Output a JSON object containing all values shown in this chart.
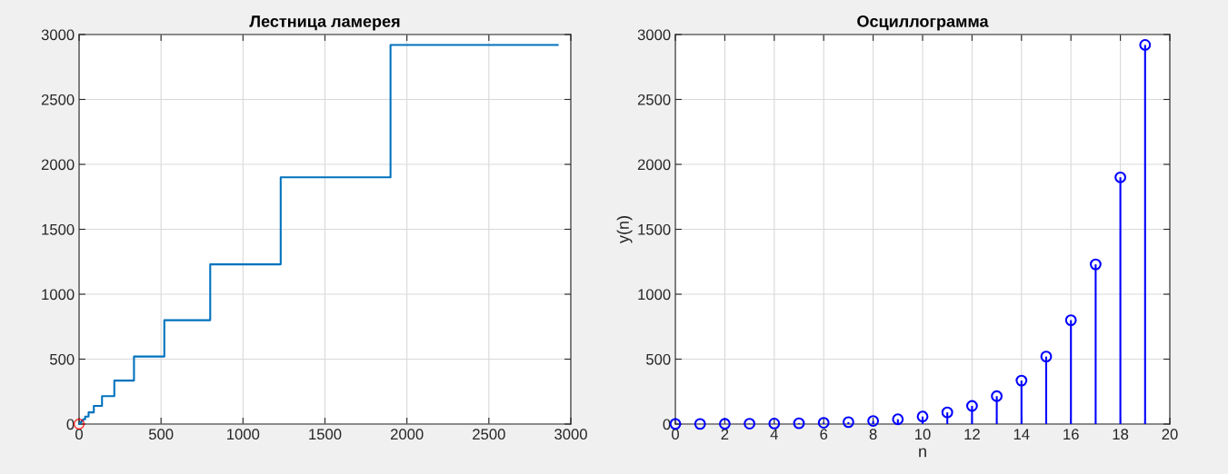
{
  "chart_data": [
    {
      "type": "line",
      "title": "Лестница ламерея",
      "xlim": [
        0,
        3000
      ],
      "xticks": [
        0,
        500,
        1000,
        1500,
        2000,
        2500,
        3000
      ],
      "ylim": [
        0,
        3000
      ],
      "yticks": [
        0,
        500,
        1000,
        1500,
        2000,
        2500,
        3000
      ],
      "grid": true,
      "series": [
        {
          "type": "line",
          "color": "#0072bd",
          "x": [
            1,
            1,
            1,
            2,
            2,
            3,
            3,
            4,
            4,
            6,
            6,
            10,
            10,
            15,
            15,
            24,
            24,
            37,
            37,
            58,
            58,
            90,
            90,
            140,
            140,
            215,
            215,
            335,
            335,
            520,
            520,
            800,
            800,
            1230,
            1230,
            1900,
            1900,
            2920
          ],
          "values": [
            1,
            1,
            2,
            2,
            3,
            3,
            4,
            4,
            6,
            6,
            10,
            10,
            15,
            15,
            24,
            24,
            37,
            37,
            58,
            58,
            90,
            90,
            140,
            140,
            215,
            215,
            335,
            335,
            520,
            520,
            800,
            800,
            1230,
            1230,
            1900,
            1900,
            2920,
            2920
          ]
        },
        {
          "type": "scatter",
          "color": "#ff0000",
          "marker": "circle",
          "x": [
            0
          ],
          "values": [
            0
          ]
        }
      ]
    },
    {
      "type": "lollipop",
      "title": "Осциллограмма",
      "xlabel": "n",
      "ylabel": "y(n)",
      "xlim": [
        0,
        20
      ],
      "xticks": [
        0,
        2,
        4,
        6,
        8,
        10,
        12,
        14,
        16,
        18,
        20
      ],
      "ylim": [
        0,
        3000
      ],
      "yticks": [
        0,
        500,
        1000,
        1500,
        2000,
        2500,
        3000
      ],
      "grid": true,
      "marker": "circle",
      "series": [
        {
          "color": "#0000ff",
          "x": [
            0,
            1,
            2,
            3,
            4,
            5,
            6,
            7,
            8,
            9,
            10,
            11,
            12,
            13,
            14,
            15,
            16,
            17,
            18,
            19
          ],
          "values": [
            1,
            1,
            2,
            3,
            4,
            6,
            10,
            15,
            24,
            37,
            58,
            90,
            140,
            215,
            335,
            520,
            800,
            1230,
            1900,
            2920
          ]
        }
      ]
    }
  ]
}
